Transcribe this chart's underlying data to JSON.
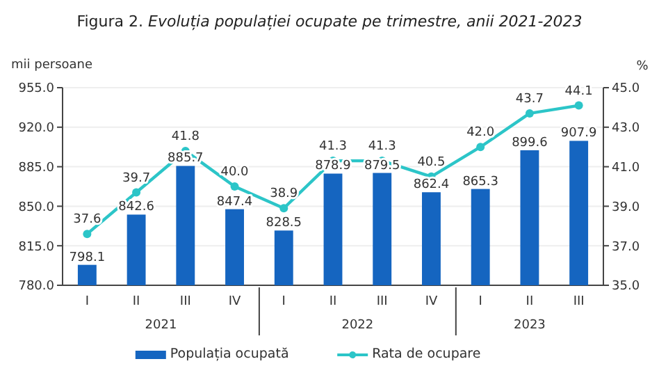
{
  "chart_data": {
    "type": "bar",
    "title": "Figura 2. Evoluția populației ocupate pe trimestre, anii 2021-2023",
    "ylabel": "mii persoane",
    "y2label": "%",
    "categories": [
      "I",
      "II",
      "III",
      "IV",
      "I",
      "II",
      "III",
      "IV",
      "I",
      "II",
      "III"
    ],
    "series": [
      {
        "name": "Populația ocupată",
        "color": "#1565c0",
        "values": [
          798.1,
          842.6,
          885.7,
          847.4,
          828.5,
          878.9,
          879.5,
          862.4,
          865.3,
          899.6,
          907.9
        ],
        "value_labels": [
          "798.1",
          "842.6",
          "885.7",
          "847.4",
          "828.5",
          "878.9",
          "879.5",
          "862.4",
          "865.3",
          "899.6",
          "907.9"
        ]
      },
      {
        "name": "Rata de ocupare",
        "type": "line",
        "axis": "y2",
        "color": "#2cc5c8",
        "marker": "circle",
        "values": [
          37.6,
          39.7,
          41.8,
          40.0,
          38.9,
          41.3,
          41.3,
          40.5,
          42.0,
          43.7,
          44.1
        ],
        "value_labels": [
          "37.6",
          "39.7",
          "41.8",
          "40.0",
          "38.9",
          "41.3",
          "41.3",
          "40.5",
          "42.0",
          "43.7",
          "44.1"
        ]
      }
    ],
    "annotations": [
      "2021",
      "2022",
      "2023"
    ],
    "ylim": [
      780,
      955
    ],
    "yticks": [
      {
        "value": 780,
        "label": "780.0"
      },
      {
        "value": 815,
        "label": "815.0"
      },
      {
        "value": 850,
        "label": "850.0"
      },
      {
        "value": 885,
        "label": "885.0"
      },
      {
        "value": 920,
        "label": "920.0"
      },
      {
        "value": 955,
        "label": "955.0"
      }
    ],
    "y2lim": [
      35,
      45
    ],
    "y2ticks": [
      {
        "value": 35,
        "label": "35.0"
      },
      {
        "value": 37,
        "label": "37.0"
      },
      {
        "value": 39,
        "label": "39.0"
      },
      {
        "value": 41,
        "label": "41.0"
      },
      {
        "value": 43,
        "label": "43.0"
      },
      {
        "value": 45,
        "label": "45.0"
      }
    ],
    "grid": "y",
    "legend": "bottom"
  }
}
